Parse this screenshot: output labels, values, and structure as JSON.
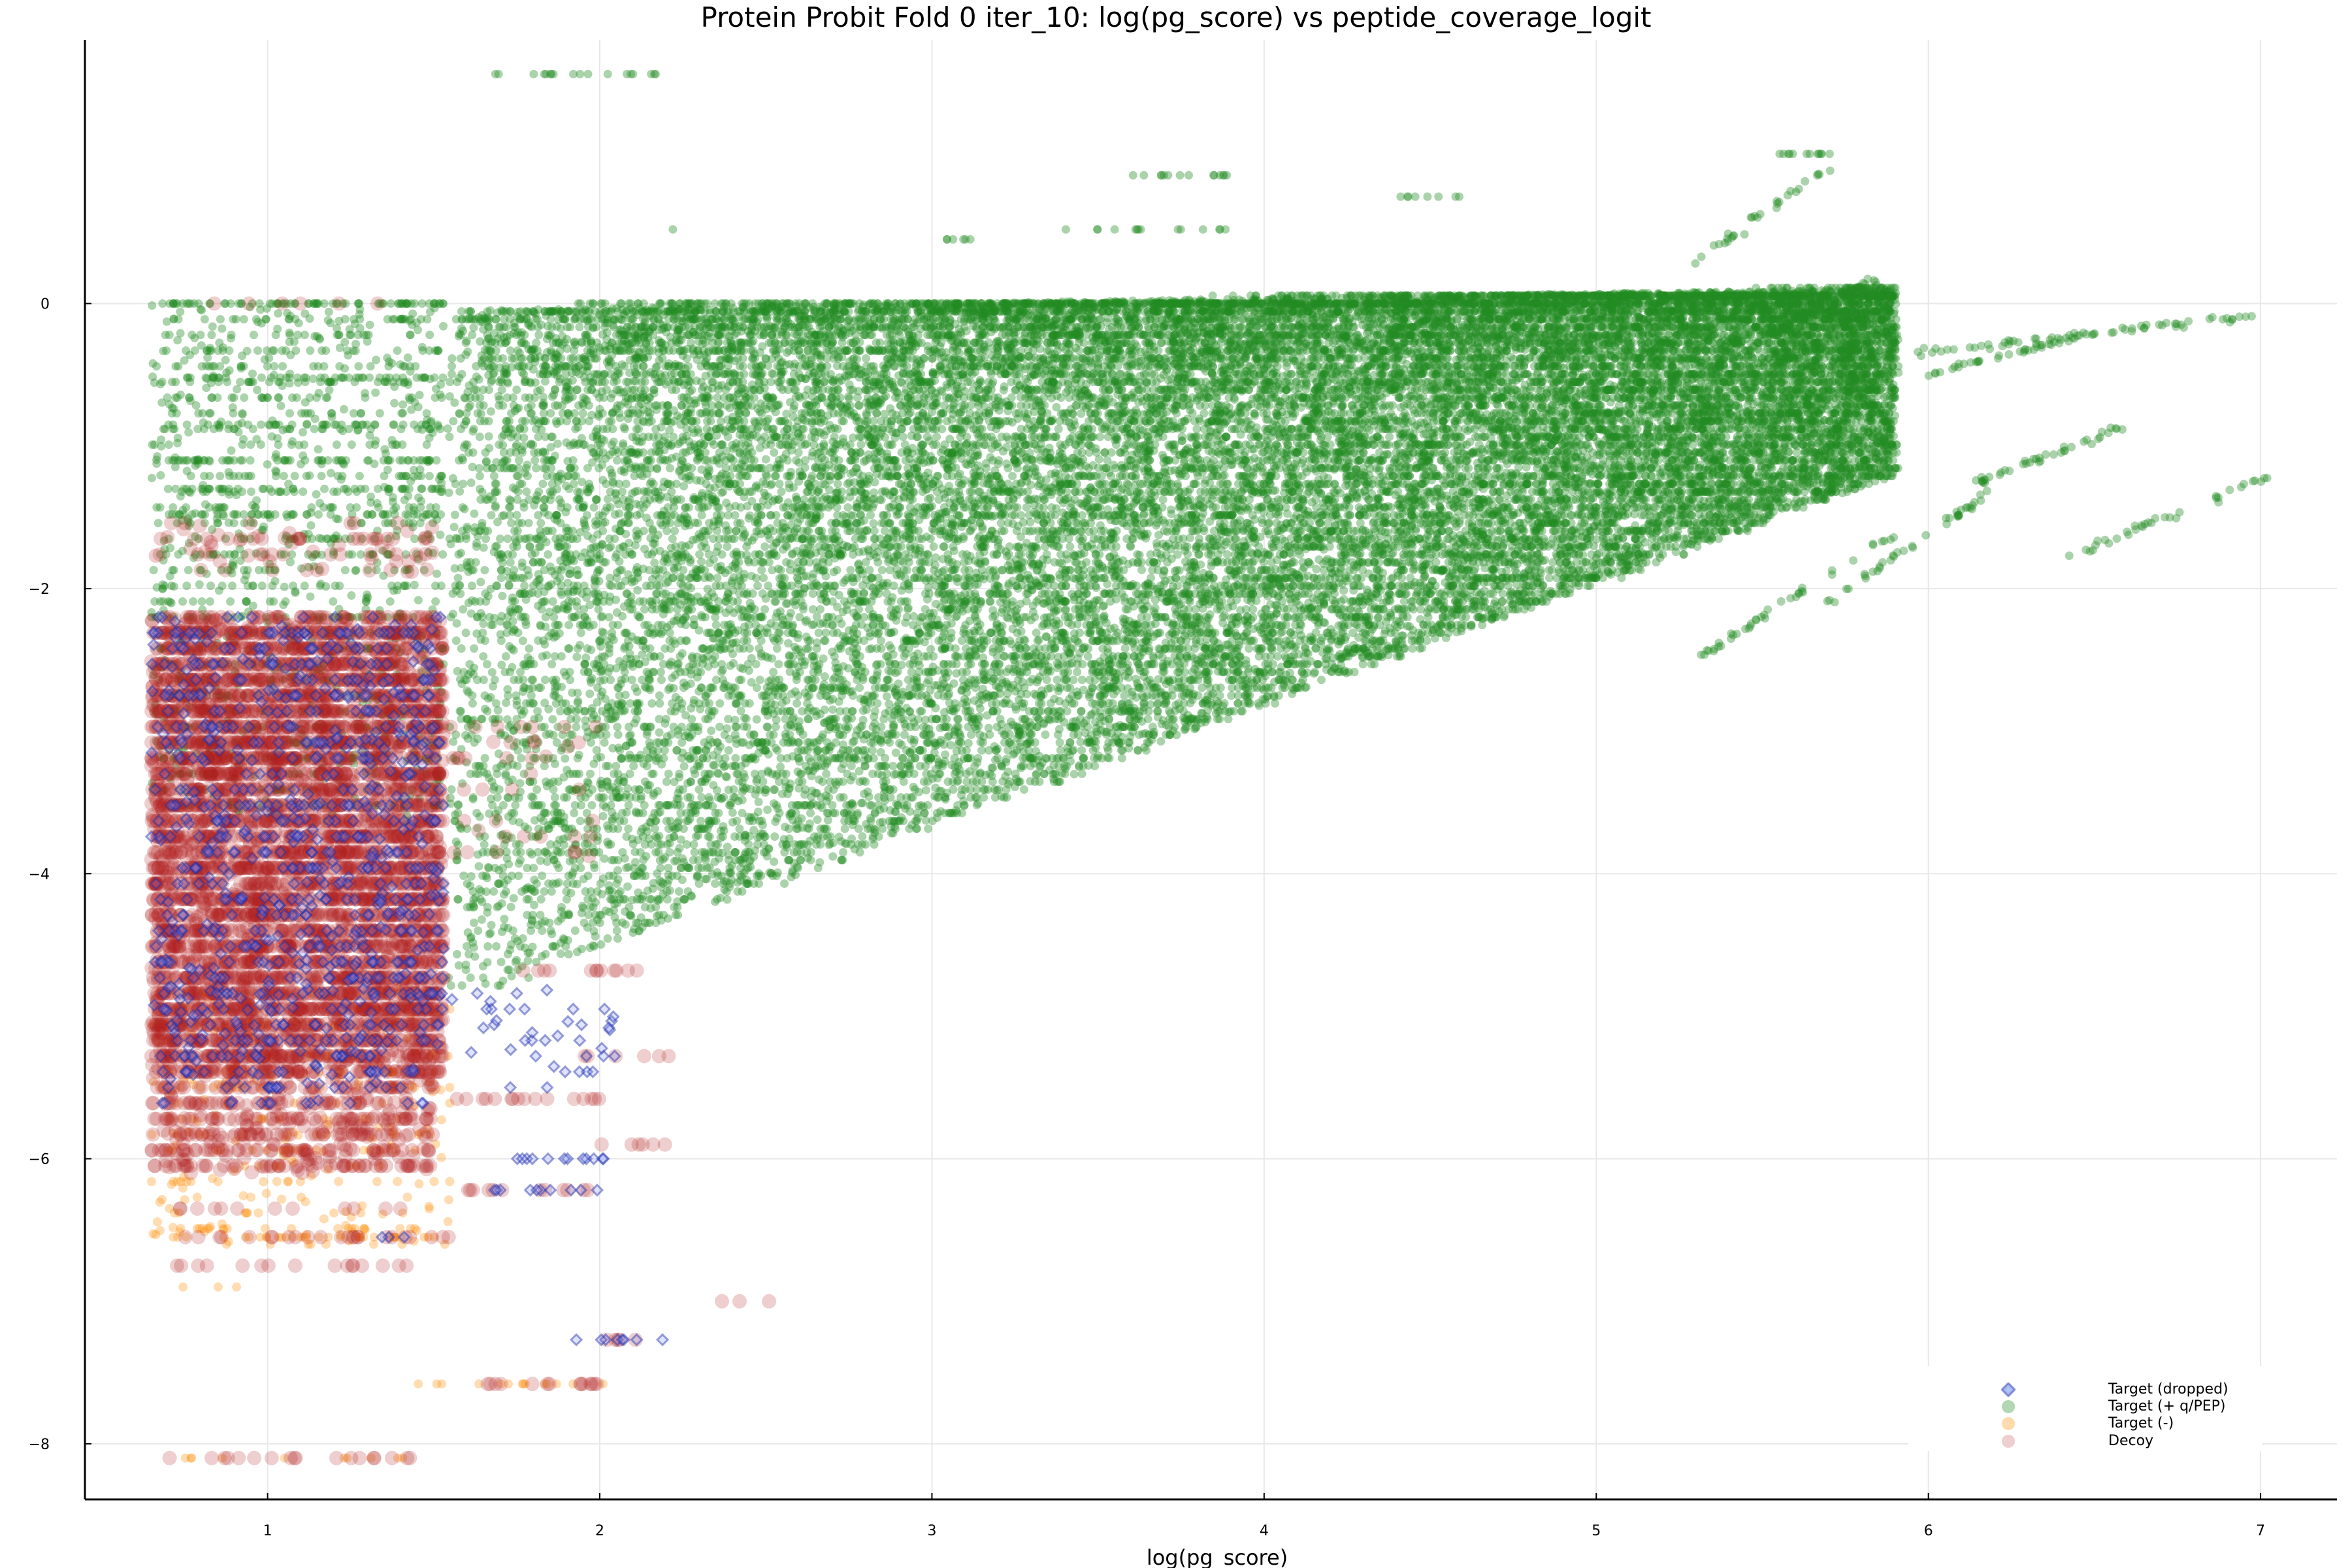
{
  "chart_data": {
    "type": "scatter",
    "title": "Protein Probit Fold 0 iter_10: log(pg_score) vs peptide_coverage_logit",
    "xlabel": "log(pg_score)",
    "ylabel": "",
    "xlim": [
      0.45,
      7.23
    ],
    "ylim": [
      -8.39,
      1.85
    ],
    "x_ticks": [
      1,
      2,
      3,
      4,
      5,
      6,
      7
    ],
    "x_tick_labels": [
      "1",
      "2",
      "3",
      "4",
      "5",
      "6",
      "7"
    ],
    "y_ticks": [
      0,
      -2,
      -4,
      -6,
      -8
    ],
    "y_tick_labels": [
      "0",
      "−2",
      "−4",
      "−6",
      "−8"
    ],
    "grid": true,
    "legend_position": "bottom-right",
    "series": [
      {
        "name": "Target (dropped)",
        "marker": "diamond",
        "color": "#1F2FA8",
        "alpha": 0.45,
        "description": "Concentrated at x 0.65–1.55, y −5.6 to −2.2; sparse rows at y≈−4.9, −5.3, −6.0, −6.2, −7.3 for x 1.55–2.1",
        "clusters": [
          {
            "x": [
              0.65,
              1.53
            ],
            "y": [
              -5.6,
              -2.2
            ],
            "n": 900
          },
          {
            "x": [
              1.55,
              2.05
            ],
            "y": [
              -5.5,
              -4.8
            ],
            "n": 40
          }
        ],
        "rows": [
          {
            "y": -6.0,
            "x": [
              1.75,
              2.05
            ],
            "n": 12
          },
          {
            "y": -6.22,
            "x": [
              1.6,
              2.0
            ],
            "n": 10
          },
          {
            "y": -7.27,
            "x": [
              1.92,
              2.2
            ],
            "n": 8
          },
          {
            "y": -6.55,
            "x": [
              1.3,
              1.5
            ],
            "n": 3
          }
        ]
      },
      {
        "name": "Target (+ q/PEP)",
        "marker": "circle",
        "color": "#228B22",
        "alpha": 0.38,
        "description": "Main dense wedge from x≈0.65 to 5.9, y from −4.8 up to 0.2, widening and rising with x; horizontal streak rows at discrete coverage values; sparse diagonal streaks out to x≈7.0",
        "wedge": {
          "x": [
            1.55,
            5.9
          ],
          "y_top": [
            -0.05,
            0.1
          ],
          "y_bottom": [
            -4.9,
            -1.2
          ],
          "n": 26000
        },
        "clusters": [
          {
            "x": [
              0.65,
              1.53
            ],
            "y": [
              -3.6,
              -0.0
            ],
            "n": 1400
          }
        ],
        "rows": [
          {
            "y": 1.61,
            "x": [
              1.68,
              2.22
            ],
            "n": 18
          },
          {
            "y": 0.52,
            "x": [
              2.22,
              2.22
            ],
            "n": 1
          },
          {
            "y": 0.9,
            "x": [
              3.6,
              3.92
            ],
            "n": 14
          },
          {
            "y": 0.52,
            "x": [
              3.4,
              3.9
            ],
            "n": 14
          },
          {
            "y": 0.45,
            "x": [
              3.0,
              3.12
            ],
            "n": 6
          },
          {
            "y": 0.75,
            "x": [
              4.4,
              4.6
            ],
            "n": 8
          },
          {
            "y": 1.05,
            "x": [
              5.55,
              5.72
            ],
            "n": 12
          },
          {
            "y": 0.0,
            "x": [
              0.7,
              1.53
            ],
            "n": 60
          },
          {
            "y": 0.0,
            "x": [
              1.9,
              5.0
            ],
            "n": 200
          },
          {
            "y": -0.52,
            "x": [
              0.75,
              1.53
            ],
            "n": 40
          },
          {
            "y": -0.85,
            "x": [
              0.7,
              1.53
            ],
            "n": 40
          },
          {
            "y": -1.1,
            "x": [
              0.7,
              1.53
            ],
            "n": 40
          },
          {
            "y": -1.3,
            "x": [
              0.7,
              1.53
            ],
            "n": 40
          },
          {
            "y": -1.48,
            "x": [
              0.7,
              1.53
            ],
            "n": 50
          }
        ],
        "streaks": [
          {
            "from": [
              5.95,
              -0.35
            ],
            "to": [
              7.0,
              -0.08
            ],
            "n": 60
          },
          {
            "from": [
              6.0,
              -0.5
            ],
            "to": [
              6.5,
              -0.2
            ],
            "n": 40
          },
          {
            "from": [
              6.15,
              -1.25
            ],
            "to": [
              6.6,
              -0.85
            ],
            "n": 40
          },
          {
            "from": [
              6.4,
              -1.8
            ],
            "to": [
              7.03,
              -1.2
            ],
            "n": 35
          },
          {
            "from": [
              5.7,
              -2.1
            ],
            "to": [
              6.2,
              -1.3
            ],
            "n": 40
          },
          {
            "from": [
              5.3,
              -2.5
            ],
            "to": [
              5.9,
              -1.6
            ],
            "n": 40
          },
          {
            "from": [
              5.5,
              -0.25
            ],
            "to": [
              5.85,
              0.18
            ],
            "n": 45
          },
          {
            "from": [
              5.3,
              0.3
            ],
            "to": [
              5.7,
              0.95
            ],
            "n": 30
          }
        ]
      },
      {
        "name": "Target (-)",
        "marker": "circle",
        "color": "#FF8C00",
        "alpha": 0.3,
        "description": "Mostly x 0.65–1.55, y −6.9 to −4.6, underlying decoy cluster; a row at y≈−7.6 for x 1.45–2.05 and y≈−8.1 for x 0.7–1.45",
        "clusters": [
          {
            "x": [
              0.65,
              1.55
            ],
            "y": [
              -6.6,
              -4.8
            ],
            "n": 350
          }
        ],
        "rows": [
          {
            "y": -6.9,
            "x": [
              0.72,
              1.02
            ],
            "n": 3
          },
          {
            "y": -7.58,
            "x": [
              1.45,
              2.05
            ],
            "n": 14
          },
          {
            "y": -8.1,
            "x": [
              0.72,
              1.45
            ],
            "n": 10
          },
          {
            "y": -6.55,
            "x": [
              0.65,
              1.52
            ],
            "n": 30
          }
        ]
      },
      {
        "name": "Decoy",
        "marker": "circle",
        "color": "#B22222",
        "alpha": 0.22,
        "description": "Dense block x 0.65–1.55, y −5.5 to −2.2 (heavy overlap, appears solid firebrick); sparse rows below to y≈−8.1 and a few points out to x≈2.55",
        "clusters": [
          {
            "x": [
              0.65,
              1.53
            ],
            "y": [
              -5.4,
              -2.2
            ],
            "n": 5200
          },
          {
            "x": [
              0.65,
              1.5
            ],
            "y": [
              -6.1,
              -5.4
            ],
            "n": 500
          },
          {
            "x": [
              0.65,
              1.5
            ],
            "y": [
              -1.9,
              -1.55
            ],
            "n": 80
          },
          {
            "x": [
              1.55,
              2.0
            ],
            "y": [
              -3.9,
              -2.9
            ],
            "n": 40
          }
        ],
        "rows": [
          {
            "y": 0.0,
            "x": [
              0.8,
              1.45
            ],
            "n": 6
          },
          {
            "y": -4.68,
            "x": [
              1.75,
              2.22
            ],
            "n": 12
          },
          {
            "y": -5.28,
            "x": [
              1.9,
              2.25
            ],
            "n": 6
          },
          {
            "y": -5.58,
            "x": [
              1.55,
              2.0
            ],
            "n": 16
          },
          {
            "y": -5.9,
            "x": [
              1.95,
              2.22
            ],
            "n": 6
          },
          {
            "y": -6.22,
            "x": [
              1.6,
              2.0
            ],
            "n": 12
          },
          {
            "y": -6.35,
            "x": [
              0.72,
              1.4
            ],
            "n": 12
          },
          {
            "y": -6.55,
            "x": [
              0.7,
              1.55
            ],
            "n": 24
          },
          {
            "y": -6.75,
            "x": [
              0.7,
              1.42
            ],
            "n": 16
          },
          {
            "y": -7.0,
            "x": [
              2.35,
              2.55
            ],
            "n": 3
          },
          {
            "y": -7.27,
            "x": [
              1.92,
              2.15
            ],
            "n": 5
          },
          {
            "y": -7.58,
            "x": [
              1.55,
              2.02
            ],
            "n": 14
          },
          {
            "y": -8.1,
            "x": [
              0.7,
              1.5
            ],
            "n": 18
          }
        ]
      }
    ]
  },
  "legend": {
    "items": [
      {
        "label": "Target (dropped)",
        "marker": "diamond",
        "color": "#3A4FC8"
      },
      {
        "label": "Target (+ q/PEP)",
        "marker": "circle",
        "color": "#228B22"
      },
      {
        "label": "Target (-)",
        "marker": "circle",
        "color": "#FF8C00"
      },
      {
        "label": "Decoy",
        "marker": "circle",
        "color": "#B22222"
      }
    ]
  },
  "colors": {
    "axis": "#000000",
    "grid": "#E8E8E8",
    "background": "#FFFFFF"
  }
}
